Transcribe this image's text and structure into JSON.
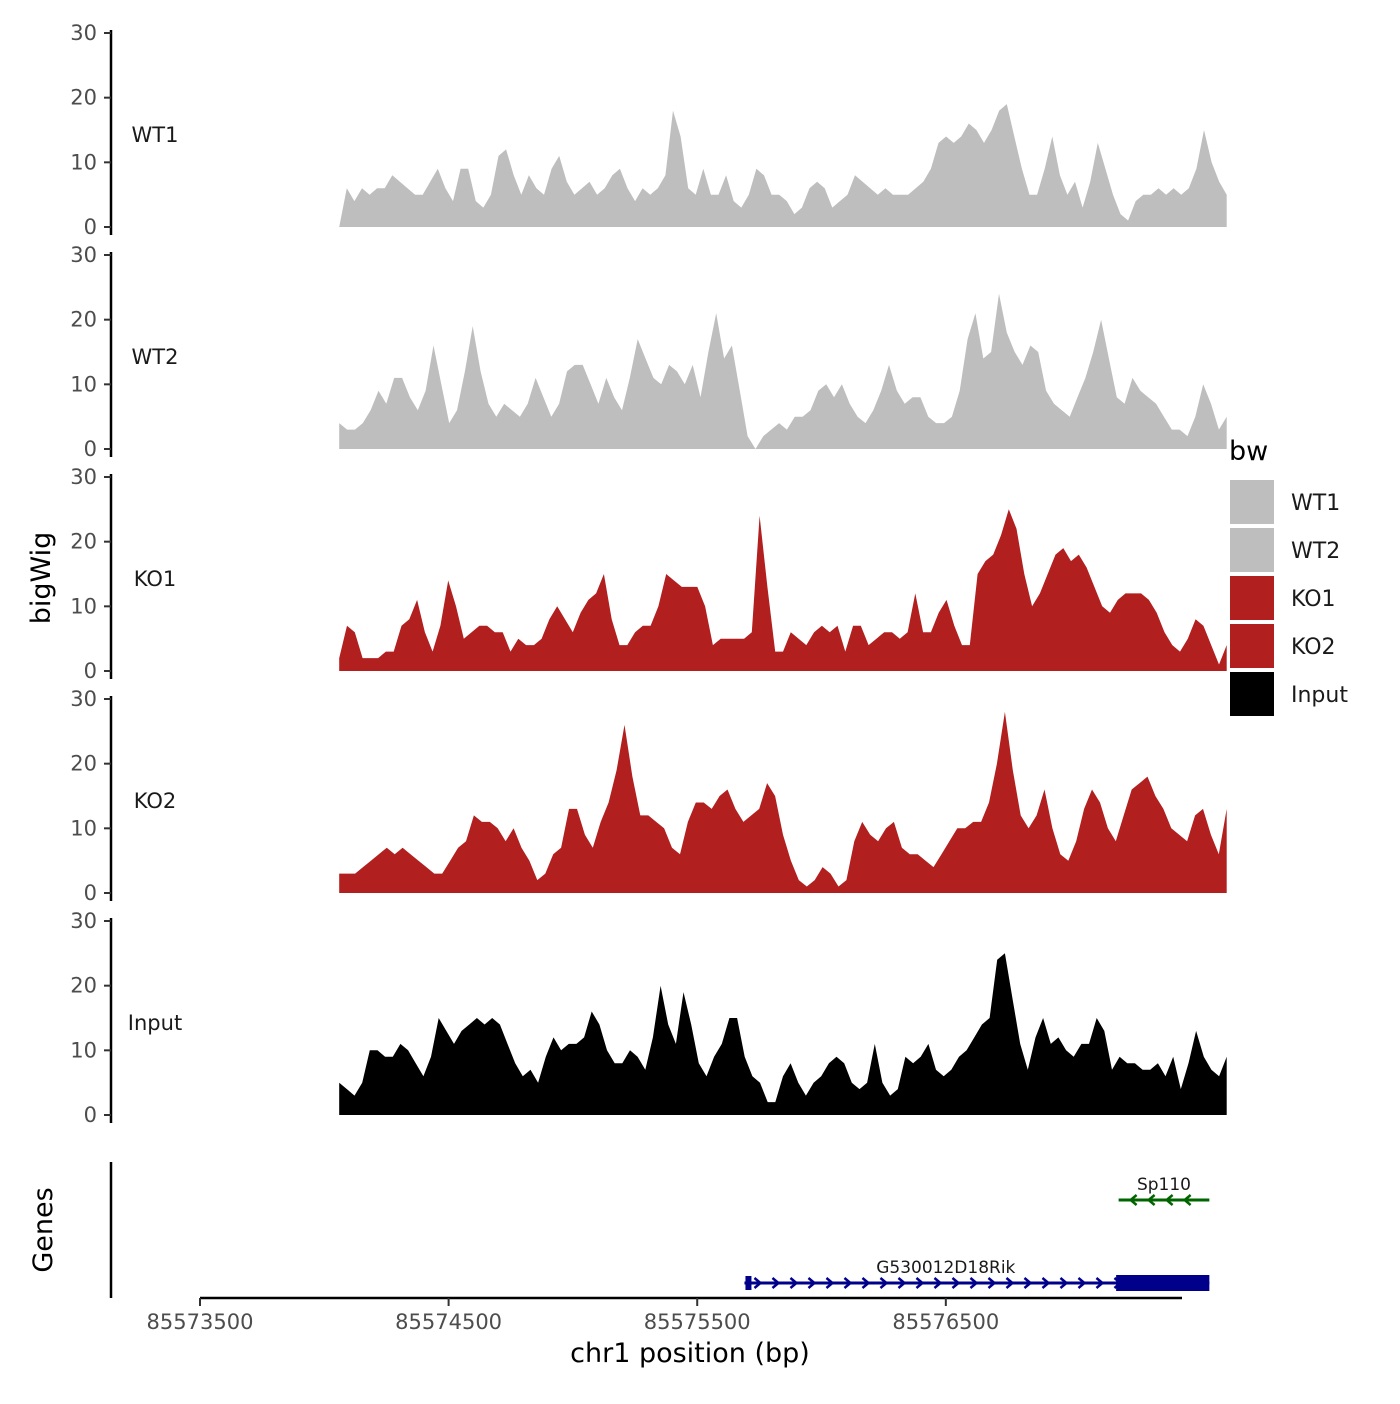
{
  "chart_data": {
    "type": "area",
    "title": "",
    "ylabel": "bigWig",
    "xlabel": "chr1 position (bp)",
    "ylim": [
      0,
      30
    ],
    "yticks": [
      0,
      10,
      20,
      30
    ],
    "xlim": [
      85573500,
      85577450
    ],
    "xticks": [
      85573500,
      85574500,
      85575500,
      85576500
    ],
    "x_start": 85574060,
    "x_end": 85577630,
    "legend": {
      "title": "bw",
      "position": "right",
      "entries": [
        {
          "label": "WT1",
          "color": "#bebebe"
        },
        {
          "label": "WT2",
          "color": "#bebebe"
        },
        {
          "label": "KO1",
          "color": "#b21f1f"
        },
        {
          "label": "KO2",
          "color": "#b21f1f"
        },
        {
          "label": "Input",
          "color": "#000000"
        }
      ]
    },
    "series": [
      {
        "name": "WT1",
        "color": "#bebebe",
        "values": [
          0,
          6,
          4,
          6,
          5,
          6,
          6,
          8,
          7,
          6,
          5,
          5,
          7,
          9,
          6,
          4,
          9,
          9,
          4,
          3,
          5,
          11,
          12,
          8,
          5,
          8,
          6,
          5,
          9,
          11,
          7,
          5,
          6,
          7,
          5,
          6,
          8,
          9,
          6,
          4,
          6,
          5,
          6,
          8,
          18,
          14,
          6,
          5,
          9,
          5,
          5,
          8,
          4,
          3,
          5,
          9,
          8,
          5,
          5,
          4,
          2,
          3,
          6,
          7,
          6,
          3,
          4,
          5,
          8,
          7,
          6,
          5,
          6,
          5,
          5,
          5,
          6,
          7,
          9,
          13,
          14,
          13,
          14,
          16,
          15,
          13,
          15,
          18,
          19,
          14,
          9,
          5,
          5,
          9,
          14,
          8,
          5,
          7,
          3,
          7,
          13,
          9,
          5,
          2,
          1,
          4,
          5,
          5,
          6,
          5,
          6,
          5,
          6,
          9,
          15,
          10,
          7,
          5
        ]
      },
      {
        "name": "WT2",
        "color": "#bebebe",
        "values": [
          4,
          3,
          3,
          4,
          6,
          9,
          7,
          11,
          11,
          8,
          6,
          9,
          16,
          10,
          4,
          6,
          12,
          19,
          12,
          7,
          5,
          7,
          6,
          5,
          7,
          11,
          8,
          5,
          7,
          12,
          13,
          13,
          10,
          7,
          11,
          8,
          6,
          11,
          17,
          14,
          11,
          10,
          13,
          12,
          10,
          13,
          8,
          15,
          21,
          14,
          16,
          9,
          2,
          0,
          2,
          3,
          4,
          3,
          5,
          5,
          6,
          9,
          10,
          8,
          10,
          7,
          5,
          4,
          6,
          9,
          13,
          9,
          7,
          8,
          8,
          5,
          4,
          4,
          5,
          9,
          17,
          21,
          14,
          15,
          24,
          18,
          15,
          13,
          16,
          15,
          9,
          7,
          6,
          5,
          8,
          11,
          15,
          20,
          14,
          8,
          7,
          11,
          9,
          8,
          7,
          5,
          3,
          3,
          2,
          5,
          10,
          7,
          3,
          5
        ]
      },
      {
        "name": "KO1",
        "color": "#b21f1f",
        "values": [
          2,
          7,
          6,
          2,
          2,
          2,
          3,
          3,
          7,
          8,
          11,
          6,
          3,
          7,
          14,
          10,
          5,
          6,
          7,
          7,
          6,
          6,
          3,
          5,
          4,
          4,
          5,
          8,
          10,
          8,
          6,
          9,
          11,
          12,
          15,
          8,
          4,
          4,
          6,
          7,
          7,
          10,
          15,
          14,
          13,
          13,
          13,
          10,
          4,
          5,
          5,
          5,
          5,
          6,
          24,
          13,
          3,
          3,
          6,
          5,
          4,
          6,
          7,
          6,
          7,
          3,
          7,
          7,
          4,
          5,
          6,
          6,
          5,
          6,
          12,
          6,
          6,
          9,
          11,
          7,
          4,
          4,
          15,
          17,
          18,
          21,
          25,
          22,
          15,
          10,
          12,
          15,
          18,
          19,
          17,
          18,
          16,
          13,
          10,
          9,
          11,
          12,
          12,
          12,
          11,
          9,
          6,
          4,
          3,
          5,
          8,
          7,
          4,
          1,
          4
        ]
      },
      {
        "name": "KO2",
        "color": "#b21f1f",
        "values": [
          3,
          3,
          3,
          4,
          5,
          6,
          7,
          6,
          7,
          6,
          5,
          4,
          3,
          3,
          5,
          7,
          8,
          12,
          11,
          11,
          10,
          8,
          10,
          7,
          5,
          2,
          3,
          6,
          7,
          13,
          13,
          9,
          7,
          11,
          14,
          19,
          26,
          18,
          12,
          12,
          11,
          10,
          7,
          6,
          11,
          14,
          14,
          13,
          15,
          16,
          13,
          11,
          12,
          13,
          17,
          15,
          9,
          5,
          2,
          1,
          2,
          4,
          3,
          1,
          2,
          8,
          11,
          9,
          8,
          10,
          11,
          7,
          6,
          6,
          5,
          4,
          6,
          8,
          10,
          10,
          11,
          11,
          14,
          20,
          28,
          19,
          12,
          10,
          12,
          16,
          10,
          6,
          5,
          8,
          13,
          16,
          14,
          10,
          8,
          12,
          16,
          17,
          18,
          15,
          13,
          10,
          9,
          8,
          12,
          13,
          9,
          6,
          13
        ]
      },
      {
        "name": "Input",
        "color": "#000000",
        "values": [
          5,
          4,
          3,
          5,
          10,
          10,
          9,
          9,
          11,
          10,
          8,
          6,
          9,
          15,
          13,
          11,
          13,
          14,
          15,
          14,
          15,
          14,
          11,
          8,
          6,
          7,
          5,
          9,
          12,
          10,
          11,
          11,
          12,
          16,
          14,
          10,
          8,
          8,
          10,
          9,
          7,
          12,
          20,
          14,
          11,
          19,
          14,
          8,
          6,
          9,
          11,
          15,
          15,
          9,
          6,
          5,
          2,
          2,
          6,
          8,
          5,
          3,
          5,
          6,
          8,
          9,
          8,
          5,
          4,
          5,
          11,
          5,
          3,
          4,
          9,
          8,
          9,
          11,
          7,
          6,
          7,
          9,
          10,
          12,
          14,
          15,
          24,
          25,
          18,
          11,
          7,
          12,
          15,
          11,
          12,
          10,
          9,
          11,
          11,
          15,
          13,
          7,
          9,
          8,
          8,
          7,
          7,
          8,
          6,
          9,
          4,
          8,
          13,
          9,
          7,
          6,
          9
        ]
      }
    ],
    "genes": [
      {
        "name": "Sp110",
        "start": 85577195,
        "end": 85577560,
        "strand": "-",
        "color": "#006400"
      },
      {
        "name": "G530012D18Rik",
        "start": 85575690,
        "end": 85577560,
        "strand": "+",
        "color": "#00008b",
        "exon_start": 85577185,
        "exon_end": 85577560
      }
    ],
    "gene_track_label": "Genes"
  }
}
